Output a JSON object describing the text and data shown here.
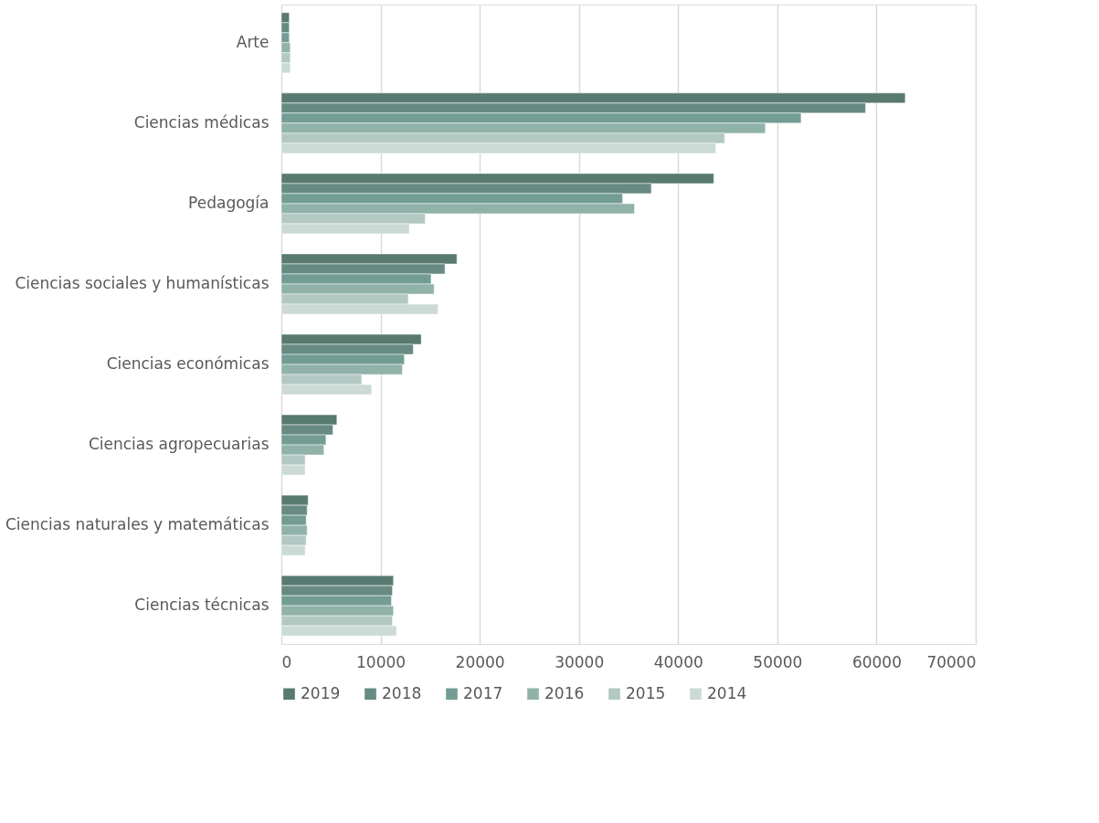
{
  "chart_data": {
    "type": "bar",
    "orientation": "horizontal",
    "categories": [
      "Arte",
      "Ciencias médicas",
      "Pedagogía",
      "Ciencias sociales y humanísticas",
      "Ciencias económicas",
      "Ciencias agropecuarias",
      "Ciencias naturales y matemáticas",
      "Ciencias técnicas"
    ],
    "series": [
      {
        "name": "2019",
        "color": "#587a70",
        "values": [
          800,
          62900,
          43600,
          17700,
          14100,
          5600,
          2700,
          11300
        ]
      },
      {
        "name": "2018",
        "color": "#678b82",
        "values": [
          800,
          58900,
          37300,
          16500,
          13300,
          5200,
          2600,
          11200
        ]
      },
      {
        "name": "2017",
        "color": "#739d94",
        "values": [
          800,
          52400,
          34400,
          15100,
          12400,
          4500,
          2500,
          11100
        ]
      },
      {
        "name": "2016",
        "color": "#90b2a9",
        "values": [
          900,
          48800,
          35600,
          15400,
          12200,
          4300,
          2600,
          11300
        ]
      },
      {
        "name": "2015",
        "color": "#b2c8c2",
        "values": [
          900,
          44700,
          14500,
          12800,
          8100,
          2400,
          2500,
          11200
        ]
      },
      {
        "name": "2014",
        "color": "#cbdad5",
        "values": [
          900,
          43800,
          12900,
          15800,
          9100,
          2400,
          2400,
          11600
        ]
      }
    ],
    "xlim": [
      0,
      70000
    ],
    "xticks": [
      0,
      10000,
      20000,
      30000,
      40000,
      50000,
      60000,
      70000
    ],
    "grid": "x",
    "legend": "bottom"
  }
}
